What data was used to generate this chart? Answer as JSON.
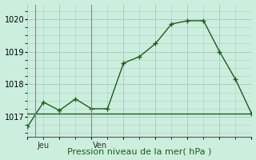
{
  "xlabel": "Pression niveau de la mer( hPa )",
  "bg_color": "#cceedd",
  "grid_color": "#aacccc",
  "line_color": "#1a5e1a",
  "line1_x": [
    0,
    1,
    2,
    3,
    4,
    5,
    6,
    7,
    8,
    9,
    10,
    11,
    12,
    13,
    14
  ],
  "line1_y": [
    1016.7,
    1017.45,
    1017.2,
    1017.55,
    1017.25,
    1017.25,
    1018.65,
    1018.85,
    1019.25,
    1019.85,
    1019.95,
    1019.95,
    1019.0,
    1018.15,
    1017.1
  ],
  "line2_x": [
    0,
    1,
    2,
    3,
    4,
    5,
    6,
    7,
    8,
    9,
    10,
    11,
    12,
    13,
    14
  ],
  "line2_y": [
    1017.1,
    1017.1,
    1017.1,
    1017.1,
    1017.1,
    1017.1,
    1017.1,
    1017.1,
    1017.1,
    1017.1,
    1017.1,
    1017.1,
    1017.1,
    1017.1,
    1017.1
  ],
  "jeu_x": 0.5,
  "ven_x": 4.0,
  "jeu_vline": 0.5,
  "ven_vline": 4.0,
  "vline_color": "#888888",
  "ylim": [
    1016.4,
    1020.45
  ],
  "xlim": [
    0,
    14
  ],
  "yticks": [
    1017,
    1018,
    1019,
    1020
  ],
  "figsize": [
    3.2,
    2.0
  ],
  "dpi": 100,
  "marker": "+",
  "markersize": 5,
  "linewidth": 1.0
}
